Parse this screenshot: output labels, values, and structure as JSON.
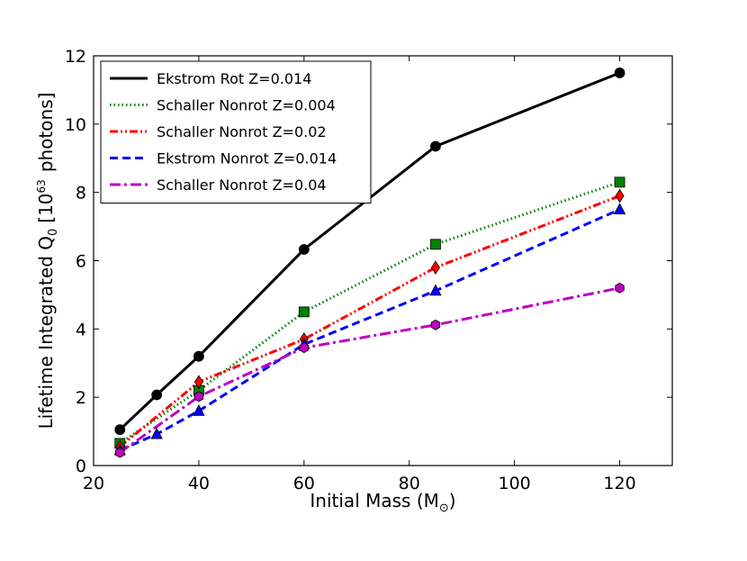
{
  "chart_data": {
    "type": "line",
    "title": "",
    "xlabel": "Initial Mass (M",
    "xlabel_sub": "⊙",
    "xlabel_close": ")",
    "ylabel": "Lifetime Integrated Q",
    "ylabel_sub": "0",
    "ylabel_units": "[10",
    "ylabel_exp": "63",
    "ylabel_units_end": "photons]",
    "xlim": [
      20,
      130
    ],
    "ylim": [
      0,
      12
    ],
    "xticks": [
      20,
      40,
      60,
      80,
      100,
      120
    ],
    "yticks": [
      0,
      2,
      4,
      6,
      8,
      10,
      12
    ],
    "legend_position": "top-left",
    "series": [
      {
        "name": "Ekstrom Rot Z=0.014",
        "color": "#000000",
        "dash": "solid",
        "marker": "circle",
        "marker_color": "#000000",
        "x": [
          25,
          32,
          40,
          60,
          85,
          120
        ],
        "y": [
          1.05,
          2.07,
          3.2,
          6.33,
          9.35,
          11.5
        ]
      },
      {
        "name": "Schaller Nonrot Z=0.004",
        "color": "#008000",
        "dash": "dotted",
        "marker": "square",
        "marker_color": "#008000",
        "x": [
          25,
          40,
          60,
          85,
          120
        ],
        "y": [
          0.65,
          2.2,
          4.5,
          6.48,
          8.3
        ]
      },
      {
        "name": "Schaller Nonrot Z=0.02",
        "color": "#ff0000",
        "dash": "dashdotdot",
        "marker": "diamond",
        "marker_color": "#ff0000",
        "x": [
          25,
          40,
          60,
          85,
          120
        ],
        "y": [
          0.55,
          2.45,
          3.7,
          5.8,
          7.9
        ]
      },
      {
        "name": "Ekstrom Nonrot Z=0.014",
        "color": "#0000ff",
        "dash": "dashed",
        "marker": "triangle",
        "marker_color": "#0000ff",
        "x": [
          25,
          32,
          40,
          60,
          85,
          120
        ],
        "y": [
          0.45,
          0.92,
          1.6,
          3.55,
          5.12,
          7.5
        ]
      },
      {
        "name": "Schaller Nonrot Z=0.04",
        "color": "#bf00bf",
        "dash": "dashdot",
        "marker": "hexagon",
        "marker_color": "#bf00bf",
        "x": [
          25,
          40,
          60,
          85,
          120
        ],
        "y": [
          0.38,
          2.02,
          3.45,
          4.12,
          5.2
        ]
      }
    ]
  }
}
